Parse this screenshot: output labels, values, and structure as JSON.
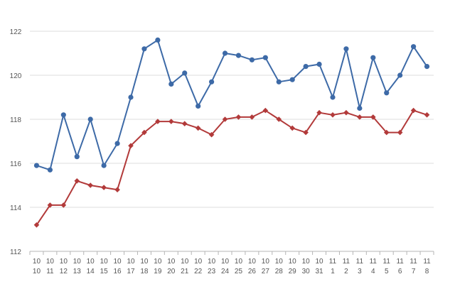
{
  "chart_data": {
    "type": "line",
    "categories": [
      [
        "10",
        "10"
      ],
      [
        "10",
        "11"
      ],
      [
        "10",
        "12"
      ],
      [
        "10",
        "13"
      ],
      [
        "10",
        "14"
      ],
      [
        "10",
        "15"
      ],
      [
        "10",
        "16"
      ],
      [
        "10",
        "17"
      ],
      [
        "10",
        "18"
      ],
      [
        "10",
        "19"
      ],
      [
        "10",
        "20"
      ],
      [
        "10",
        "21"
      ],
      [
        "10",
        "22"
      ],
      [
        "10",
        "23"
      ],
      [
        "10",
        "24"
      ],
      [
        "10",
        "25"
      ],
      [
        "10",
        "26"
      ],
      [
        "10",
        "27"
      ],
      [
        "10",
        "28"
      ],
      [
        "10",
        "29"
      ],
      [
        "10",
        "30"
      ],
      [
        "10",
        "31"
      ],
      [
        "11",
        "1"
      ],
      [
        "11",
        "2"
      ],
      [
        "11",
        "3"
      ],
      [
        "11",
        "4"
      ],
      [
        "11",
        "5"
      ],
      [
        "11",
        "6"
      ],
      [
        "11",
        "7"
      ],
      [
        "11",
        "8"
      ]
    ],
    "y_ticks": [
      "112",
      "114",
      "116",
      "118",
      "120",
      "122"
    ],
    "ylim": [
      112,
      122
    ],
    "grid": true,
    "series": [
      {
        "color": "#3d6aa7",
        "marker": "circle",
        "values": [
          115.9,
          115.7,
          118.2,
          116.3,
          118.0,
          115.9,
          116.9,
          119.0,
          121.2,
          121.6,
          119.6,
          120.1,
          118.6,
          119.7,
          121.0,
          120.9,
          120.7,
          120.8,
          119.7,
          119.8,
          120.4,
          120.5,
          119.0,
          121.2,
          118.5,
          120.8,
          119.2,
          120.0,
          121.3,
          120.4
        ]
      },
      {
        "color": "#b23a3a",
        "marker": "diamond",
        "values": [
          113.2,
          114.1,
          114.1,
          115.2,
          115.0,
          114.9,
          114.8,
          116.8,
          117.4,
          117.9,
          117.9,
          117.8,
          117.6,
          117.3,
          118.0,
          118.1,
          118.1,
          118.4,
          118.0,
          117.6,
          117.4,
          118.3,
          118.2,
          118.3,
          118.1,
          118.1,
          117.4,
          117.4,
          118.4,
          118.2
        ]
      }
    ]
  }
}
